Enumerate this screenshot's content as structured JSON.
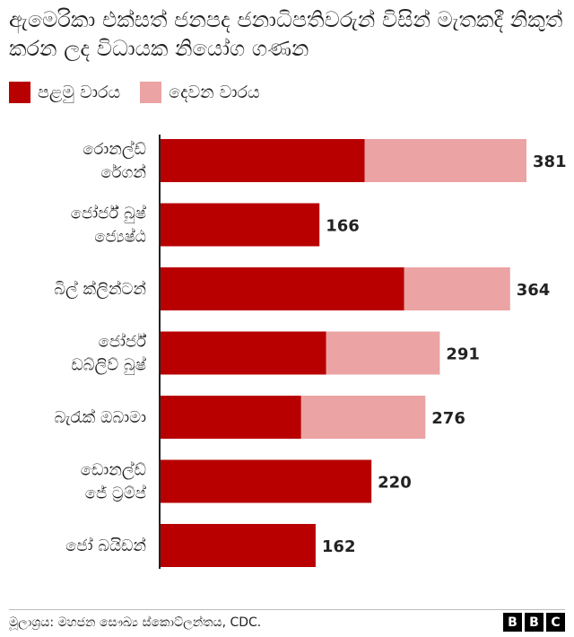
{
  "title": "ඇමෙරිකා එක්සත් ජනපද ජනාධිපතිවරුන් විසින් මැතකදී නිකුත් කරන ලද විධායක නියෝග ගණන",
  "legend": [
    {
      "label": "පළමු වාරය",
      "color": "#b80000"
    },
    {
      "label": "දෙවන වාරය",
      "color": "#eba3a3"
    }
  ],
  "chart_data": {
    "type": "bar",
    "orientation": "horizontal",
    "stacked": true,
    "categories": [
      [
        "රොනල්ඩ්",
        "රේගන්"
      ],
      [
        "ජෝර්ජ් බුෂ්",
        "ජ්‍යෙෂ්ඨ"
      ],
      [
        "බිල් ක්ලින්ටන්"
      ],
      [
        "ජෝර්ජ්",
        "ඩබ්ලිව් බුෂ්"
      ],
      [
        "බැරැක් ඔබාමා"
      ],
      [
        "ඩොනල්ඩ්",
        "ජේ ට්‍රම්ප්"
      ],
      [
        "ජෝ බයිඩන්"
      ]
    ],
    "series": [
      {
        "name": "පළමු වාරය",
        "color": "#b80000",
        "values": [
          213,
          166,
          254,
          173,
          147,
          220,
          162
        ]
      },
      {
        "name": "දෙවන වාරය",
        "color": "#eba3a3",
        "values": [
          168,
          0,
          110,
          118,
          129,
          0,
          0
        ]
      }
    ],
    "totals": [
      381,
      166,
      364,
      291,
      276,
      220,
      162
    ],
    "xlim": [
      0,
      400
    ],
    "grid": false
  },
  "footer": {
    "source": "මූලාශ්‍රය: මහජන සෞඛ්‍ය ස්කොට්ලන්තය, CDC.",
    "logo": [
      "B",
      "B",
      "C"
    ]
  }
}
